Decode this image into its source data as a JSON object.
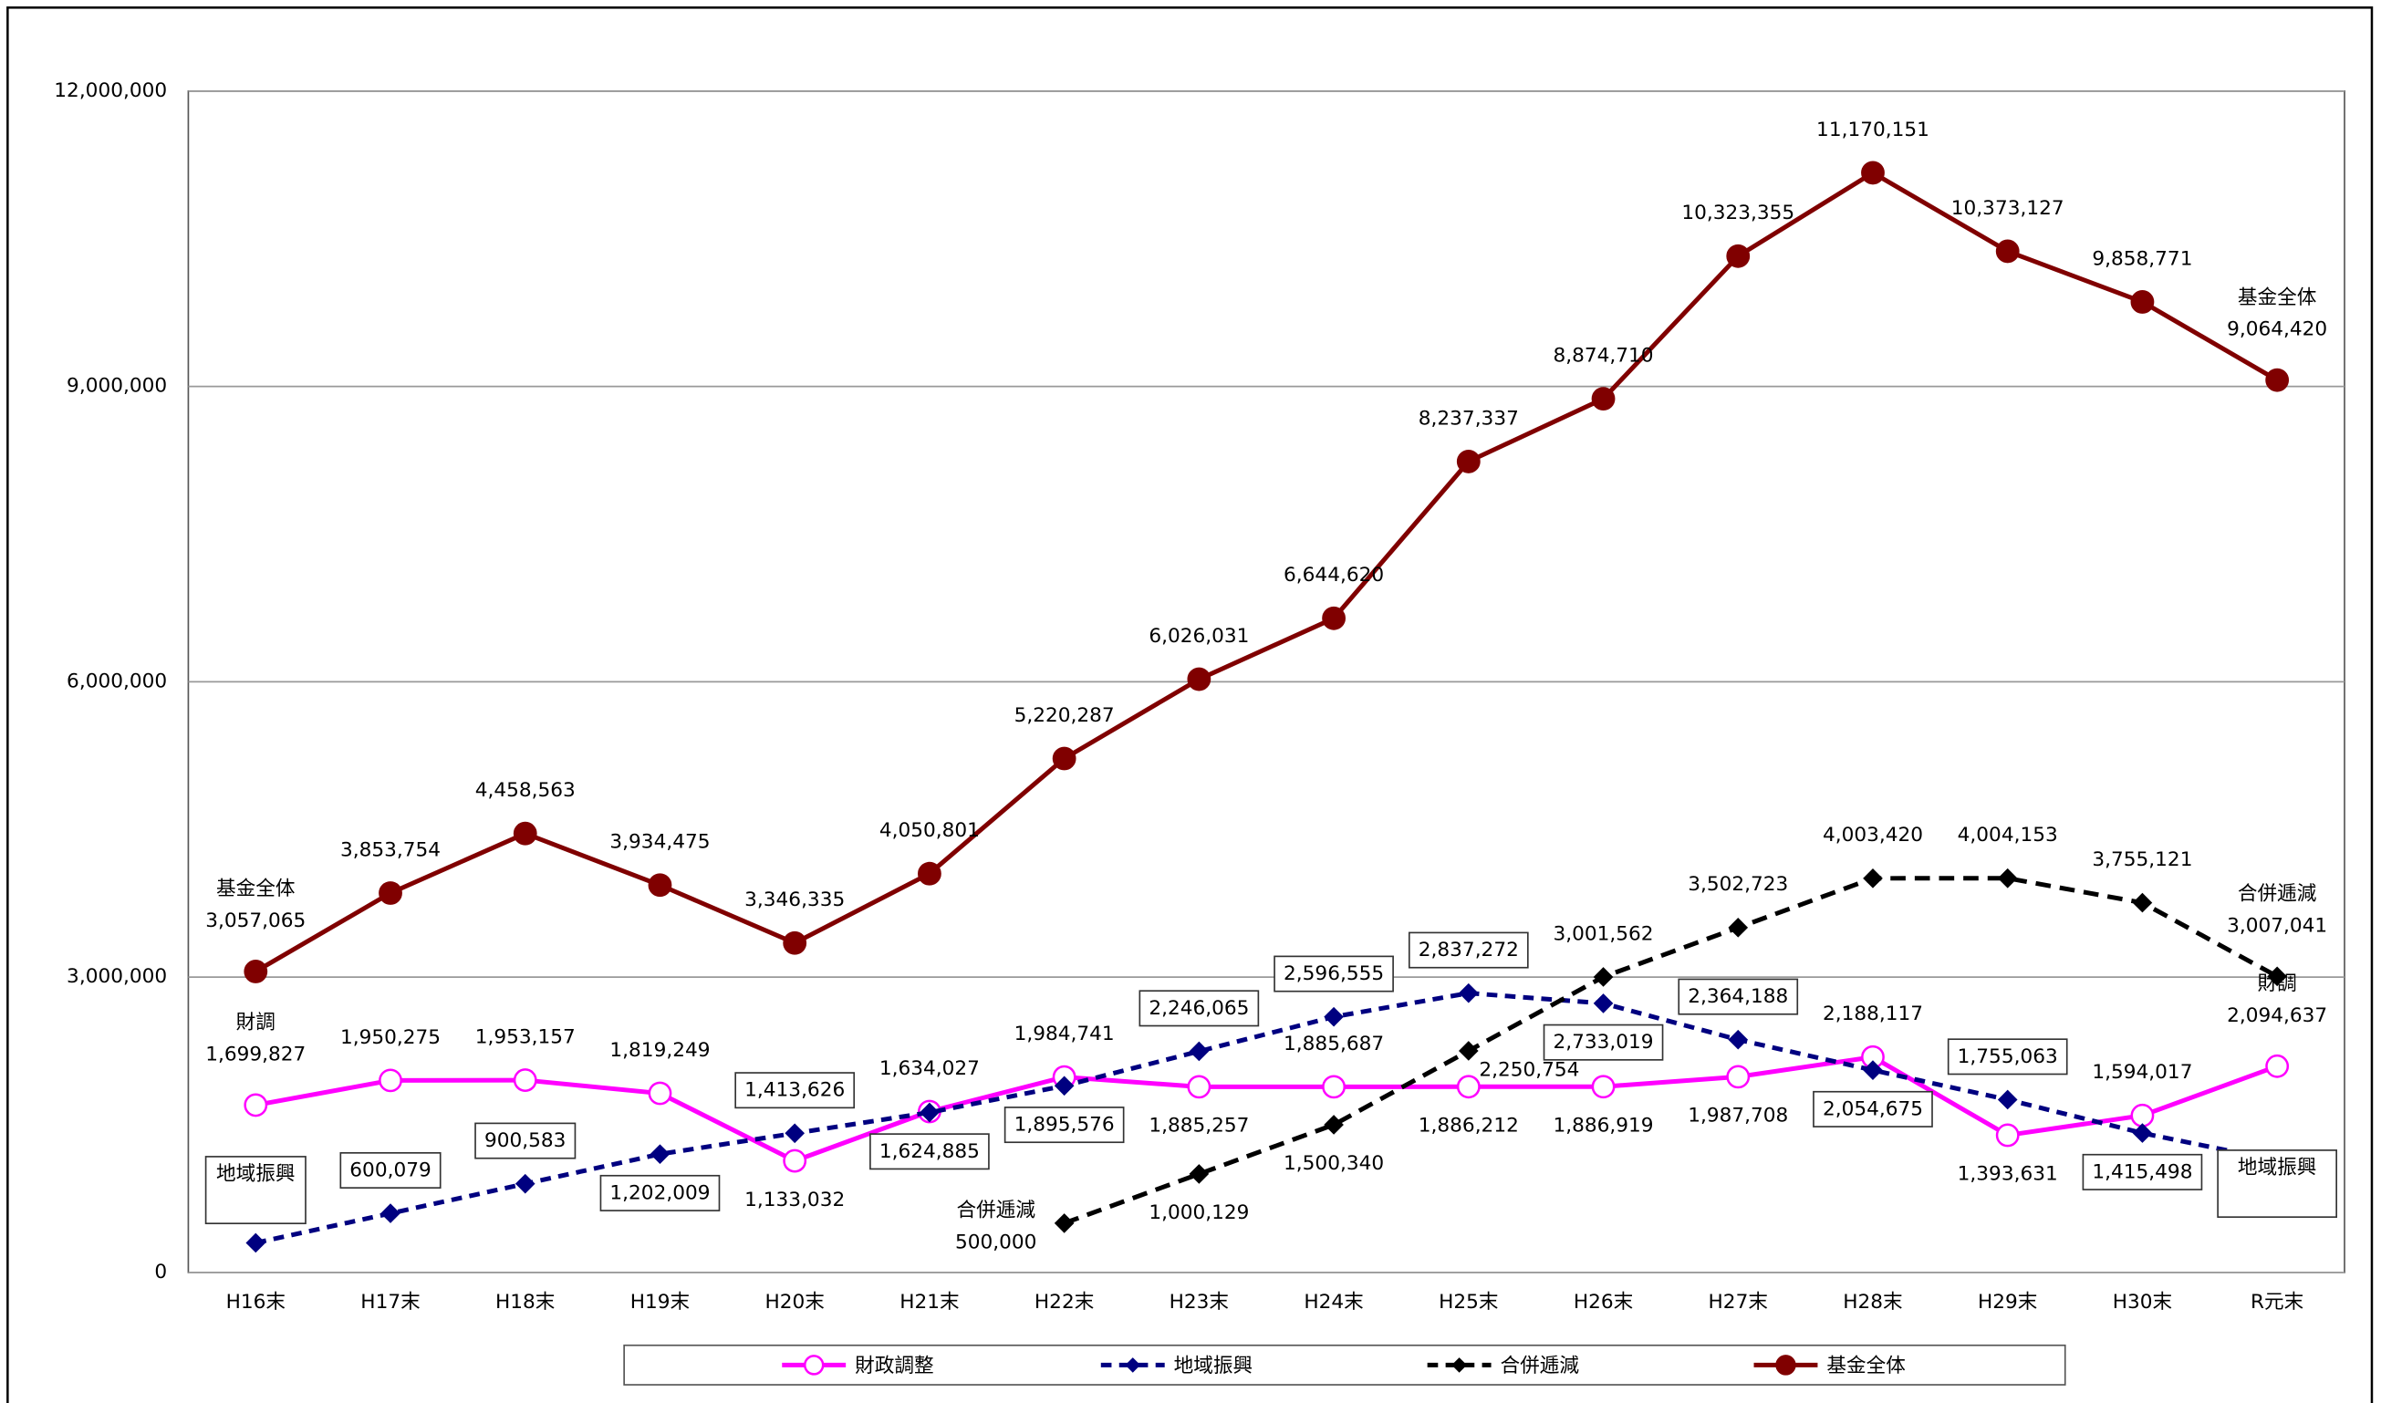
{
  "chart_data": {
    "type": "line",
    "categories": [
      "H16末",
      "H17末",
      "H18末",
      "H19末",
      "H20末",
      "H21末",
      "H22末",
      "H23末",
      "H24末",
      "H25末",
      "H26末",
      "H27末",
      "H28末",
      "H29末",
      "H30末",
      "R元末"
    ],
    "ylim": [
      0,
      12000000
    ],
    "yticks": [
      0,
      {
        "value": 3000000,
        "label": "3,000,000"
      },
      {
        "value": 6000000,
        "label": "6,000,000"
      },
      {
        "value": 9000000,
        "label": "9,000,000"
      },
      {
        "value": 12000000,
        "label": "12,000,000"
      }
    ],
    "grid": true,
    "legend": "bottom",
    "series": [
      {
        "name": "財政調整",
        "short_name": "財調",
        "color": "#ff00ff",
        "marker": "open-circle",
        "dash": "solid",
        "values": [
          1699827,
          1950275,
          1953157,
          1819249,
          1133032,
          1634027,
          1984741,
          1885257,
          1885687,
          1886212,
          1886919,
          1987708,
          2188117,
          1393631,
          1594017,
          2094637
        ],
        "value_labels": [
          "1,699,827",
          "1,950,275",
          "1,953,157",
          "1,819,249",
          "1,133,032",
          "1,634,027",
          "1,984,741",
          "1,885,257",
          "1,885,687",
          "1,886,212",
          "1,886,919",
          "1,987,708",
          "2,188,117",
          "1,393,631",
          "1,594,017",
          "2,094,637"
        ]
      },
      {
        "name": "地域振興",
        "color": "#000080",
        "marker": "diamond",
        "dash": "dashed",
        "label_box": true,
        "values": [
          300000,
          600079,
          900583,
          1202009,
          1413626,
          1624885,
          1895576,
          2246065,
          2596555,
          2837272,
          2733019,
          2364188,
          2054675,
          1755063,
          1415498,
          1136198
        ],
        "value_labels": [
          "300,000",
          "600,079",
          "900,583",
          "1,202,009",
          "1,413,626",
          "1,624,885",
          "1,895,576",
          "2,246,065",
          "2,596,555",
          "2,837,272",
          "2,733,019",
          "2,364,188",
          "2,054,675",
          "1,755,063",
          "1,415,498",
          "1,136,198"
        ]
      },
      {
        "name": "合併逓減",
        "color": "#000000",
        "marker": "diamond",
        "dash": "dashed",
        "values": [
          null,
          null,
          null,
          null,
          null,
          null,
          500000,
          1000129,
          1500340,
          2250754,
          3001562,
          3502723,
          4003420,
          4004153,
          3755121,
          3007041
        ],
        "value_labels": [
          null,
          null,
          null,
          null,
          null,
          null,
          "500,000",
          "1,000,129",
          "1,500,340",
          "2,250,754",
          "3,001,562",
          "3,502,723",
          "4,003,420",
          "4,004,153",
          "3,755,121",
          "3,007,041"
        ]
      },
      {
        "name": "基金全体",
        "color": "#800000",
        "marker": "circle",
        "dash": "solid",
        "values": [
          3057065,
          3853754,
          4458563,
          3934475,
          3346335,
          4050801,
          5220287,
          6026031,
          6644620,
          8237337,
          8874710,
          10323355,
          11170151,
          10373127,
          9858771,
          9064420
        ],
        "value_labels": [
          "3,057,065",
          "3,853,754",
          "4,458,563",
          "3,934,475",
          "3,346,335",
          "4,050,801",
          "5,220,287",
          "6,026,031",
          "6,644,620",
          "8,237,337",
          "8,874,710",
          "10,323,355",
          "11,170,151",
          "10,373,127",
          "9,858,771",
          "9,064,420"
        ]
      }
    ]
  }
}
